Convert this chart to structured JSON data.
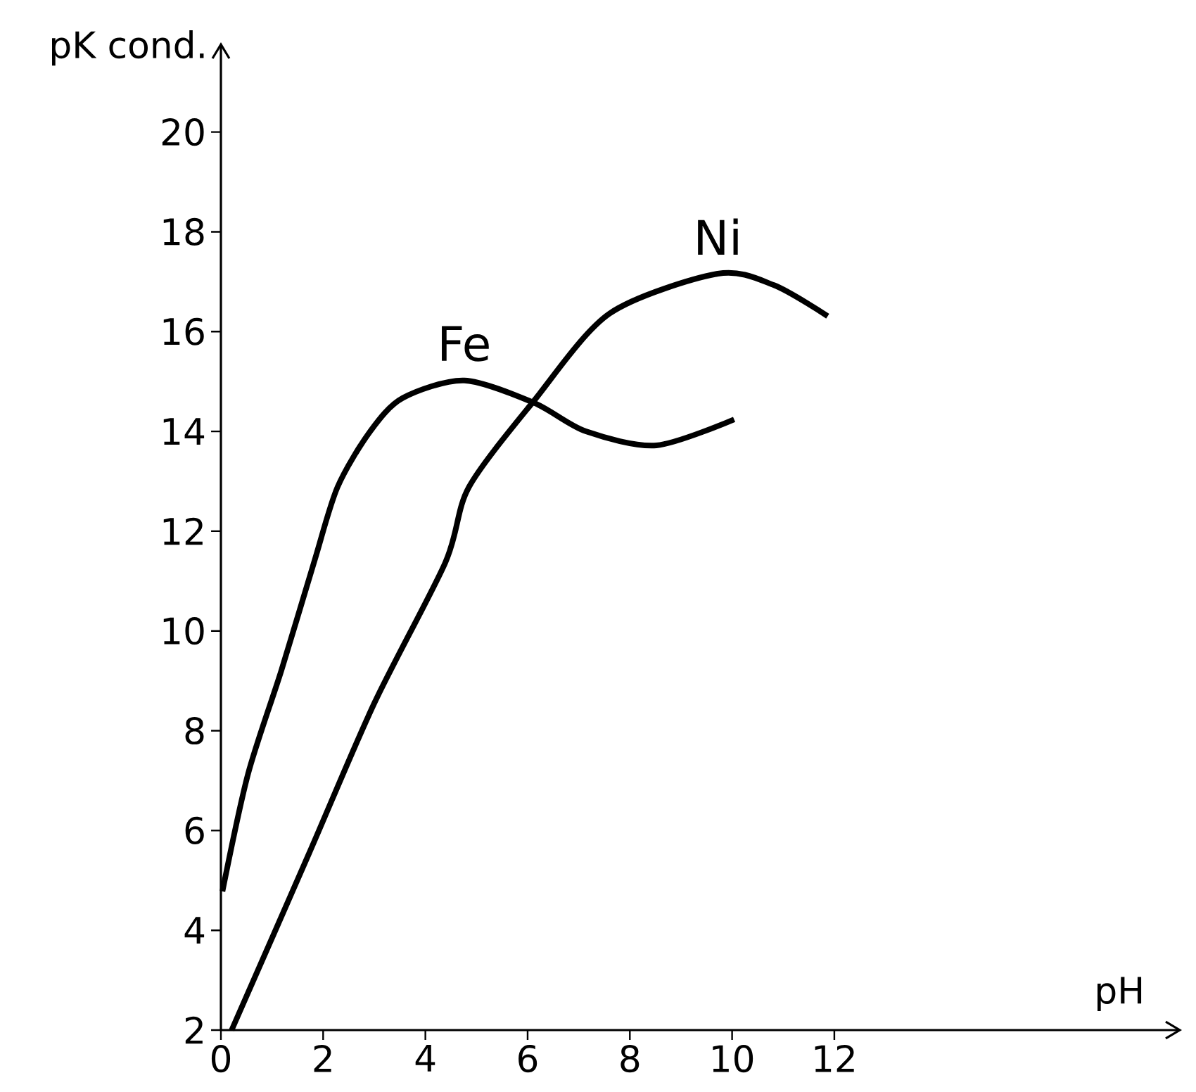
{
  "chart_data": {
    "type": "line",
    "xlabel": "pH",
    "ylabel": "pK cond.",
    "xlim": [
      0,
      18.8
    ],
    "ylim": [
      2,
      21.8
    ],
    "xticks": [
      0,
      2,
      4,
      6,
      8,
      10,
      12
    ],
    "yticks": [
      2,
      4,
      6,
      8,
      10,
      12,
      14,
      16,
      18,
      20
    ],
    "series": [
      {
        "name": "Fe",
        "color": "#000000",
        "x": [
          0.03,
          0.53,
          1.18,
          1.82,
          2.28,
          2.92,
          3.56,
          4.76,
          6.13,
          7.14,
          8.52,
          10.04
        ],
        "values": [
          4.78,
          7.13,
          9.2,
          11.37,
          12.88,
          14.0,
          14.67,
          15.02,
          14.57,
          14.0,
          13.72,
          14.24
        ]
      },
      {
        "name": "Ni",
        "color": "#000000",
        "x": [
          0.21,
          1.72,
          3.0,
          4.39,
          4.85,
          6.13,
          7.6,
          9.72,
          10.82,
          11.87
        ],
        "values": [
          2.0,
          5.53,
          8.55,
          11.37,
          12.88,
          14.62,
          16.36,
          17.16,
          16.93,
          16.31
        ]
      }
    ]
  }
}
